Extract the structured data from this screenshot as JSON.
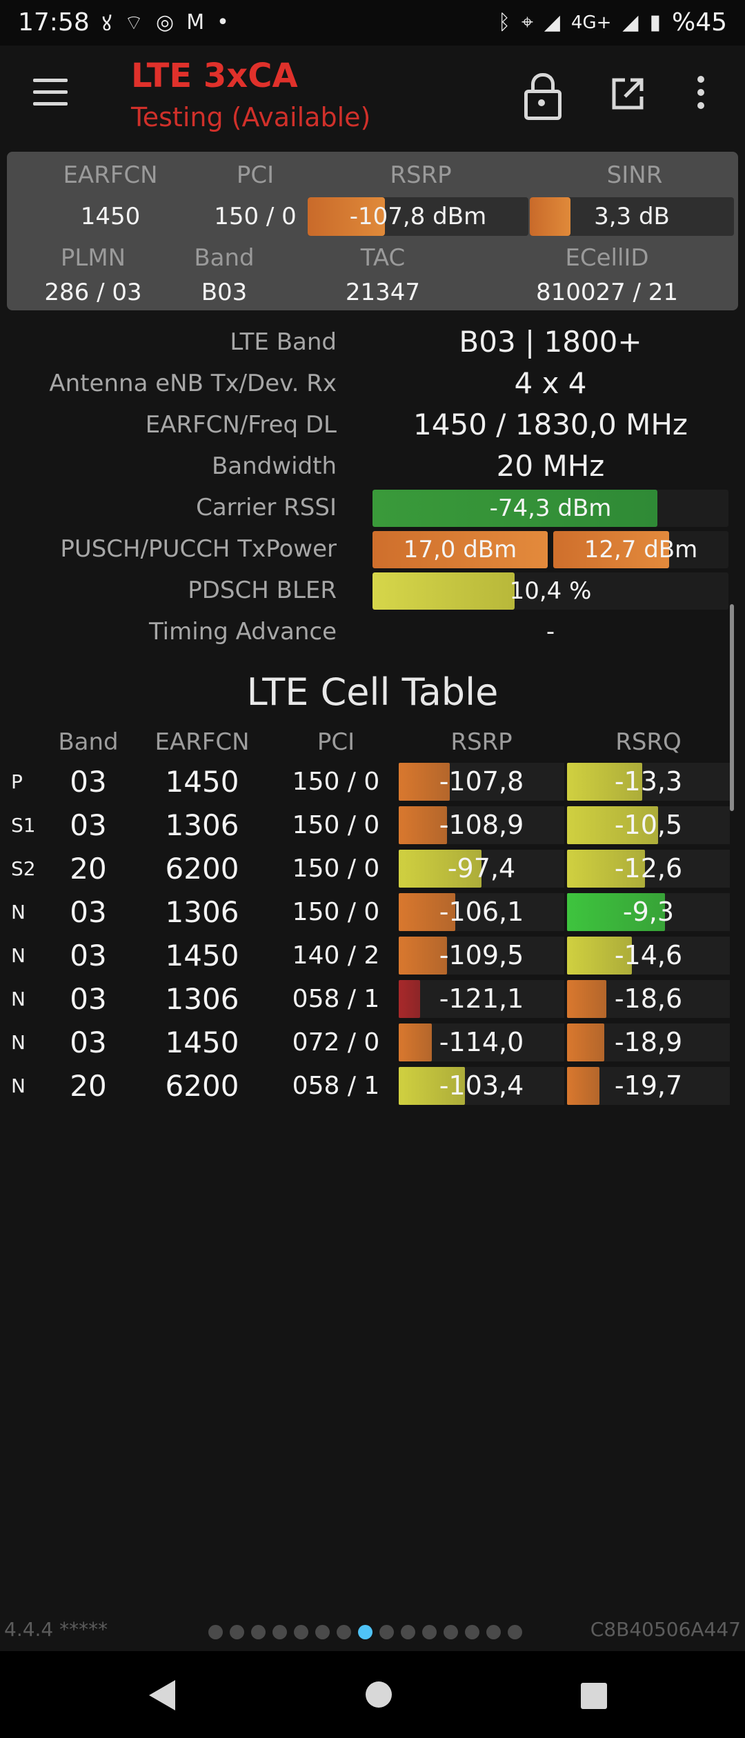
{
  "status_bar": {
    "time": "17:58",
    "left_icons": [
      "wifi-call-icon",
      "wifi-icon",
      "instagram-icon",
      "gmail-icon",
      "dot-icon"
    ],
    "right_icons": [
      "bluetooth-icon",
      "location-icon",
      "signal-icon"
    ],
    "network": "4G+",
    "battery": "%45"
  },
  "app_bar": {
    "title": "LTE 3xCA",
    "subtitle": "Testing (Available)",
    "accent_color": "#e0312b"
  },
  "summary": {
    "earfcn_label": "EARFCN",
    "earfcn": "1450",
    "pci_label": "PCI",
    "pci": "150 / 0",
    "rsrp_label": "RSRP",
    "rsrp": "-107,8 dBm",
    "rsrp_level": 0.35,
    "sinr_label": "SINR",
    "sinr": "3,3 dB",
    "sinr_level": 0.2,
    "plmn_label": "PLMN",
    "plmn": "286 / 03",
    "band_label": "Band",
    "band": "B03",
    "tac_label": "TAC",
    "tac": "21347",
    "ecellid_label": "ECellID",
    "ecellid": "810027 / 21"
  },
  "details": {
    "lte_band_label": "LTE Band",
    "lte_band": "B03 | 1800+",
    "antenna_label": "Antenna eNB Tx/Dev. Rx",
    "antenna": "4 x 4",
    "earfcn_freq_label": "EARFCN/Freq DL",
    "earfcn_freq": "1450 / 1830,0 MHz",
    "bandwidth_label": "Bandwidth",
    "bandwidth": "20 MHz",
    "rssi_label": "Carrier RSSI",
    "rssi": "-74,3 dBm",
    "rssi_level": 0.8,
    "txpower_label": "PUSCH/PUCCH TxPower",
    "pusch": "17,0 dBm",
    "pusch_level": 1.0,
    "pucch": "12,7 dBm",
    "pucch_level": 0.66,
    "bler_label": "PDSCH BLER",
    "bler": "10,4 %",
    "bler_level": 0.4,
    "ta_label": "Timing Advance",
    "ta": "-"
  },
  "cell_table": {
    "title": "LTE Cell Table",
    "headers": {
      "band": "Band",
      "earfcn": "EARFCN",
      "pci": "PCI",
      "rsrp": "RSRP",
      "rsrq": "RSRQ"
    },
    "rows": [
      {
        "type": "P",
        "band": "03",
        "earfcn": "1450",
        "pci": "150 / 0",
        "rsrp": "-107,8",
        "rsrp_level": 0.31,
        "rsrp_color": "#d9782e",
        "rsrq": "-13,3",
        "rsrq_level": 0.46,
        "rsrq_color": "#d0d040"
      },
      {
        "type": "S1",
        "band": "03",
        "earfcn": "1306",
        "pci": "150 / 0",
        "rsrp": "-108,9",
        "rsrp_level": 0.29,
        "rsrp_color": "#d9782e",
        "rsrq": "-10,5",
        "rsrq_level": 0.56,
        "rsrq_color": "#d0d040"
      },
      {
        "type": "S2",
        "band": "20",
        "earfcn": "6200",
        "pci": "150 / 0",
        "rsrp": "-97,4",
        "rsrp_level": 0.5,
        "rsrp_color": "#d0d040",
        "rsrq": "-12,6",
        "rsrq_level": 0.48,
        "rsrq_color": "#d0d040"
      },
      {
        "type": "N",
        "band": "03",
        "earfcn": "1306",
        "pci": "150 / 0",
        "rsrp": "-106,1",
        "rsrp_level": 0.34,
        "rsrp_color": "#d9782e",
        "rsrq": "-9,3",
        "rsrq_level": 0.6,
        "rsrq_color": "#3ec43e"
      },
      {
        "type": "N",
        "band": "03",
        "earfcn": "1450",
        "pci": "140 / 2",
        "rsrp": "-109,5",
        "rsrp_level": 0.29,
        "rsrp_color": "#d9782e",
        "rsrq": "-14,6",
        "rsrq_level": 0.4,
        "rsrq_color": "#d0d040"
      },
      {
        "type": "N",
        "band": "03",
        "earfcn": "1306",
        "pci": "058 / 1",
        "rsrp": "-121,1",
        "rsrp_level": 0.13,
        "rsrp_color": "#a8282a",
        "rsrq": "-18,6",
        "rsrq_level": 0.24,
        "rsrq_color": "#d9782e"
      },
      {
        "type": "N",
        "band": "03",
        "earfcn": "1450",
        "pci": "072 / 0",
        "rsrp": "-114,0",
        "rsrp_level": 0.2,
        "rsrp_color": "#d9782e",
        "rsrq": "-18,9",
        "rsrq_level": 0.23,
        "rsrq_color": "#d9782e"
      },
      {
        "type": "N",
        "band": "20",
        "earfcn": "6200",
        "pci": "058 / 1",
        "rsrp": "-103,4",
        "rsrp_level": 0.4,
        "rsrp_color": "#d0d040",
        "rsrq": "-19,7",
        "rsrq_level": 0.2,
        "rsrq_color": "#d9782e"
      }
    ]
  },
  "footer": {
    "version": "4.4.4 *****",
    "device_id": "C8B40506A447",
    "page_count": 15,
    "active_page": 7
  }
}
